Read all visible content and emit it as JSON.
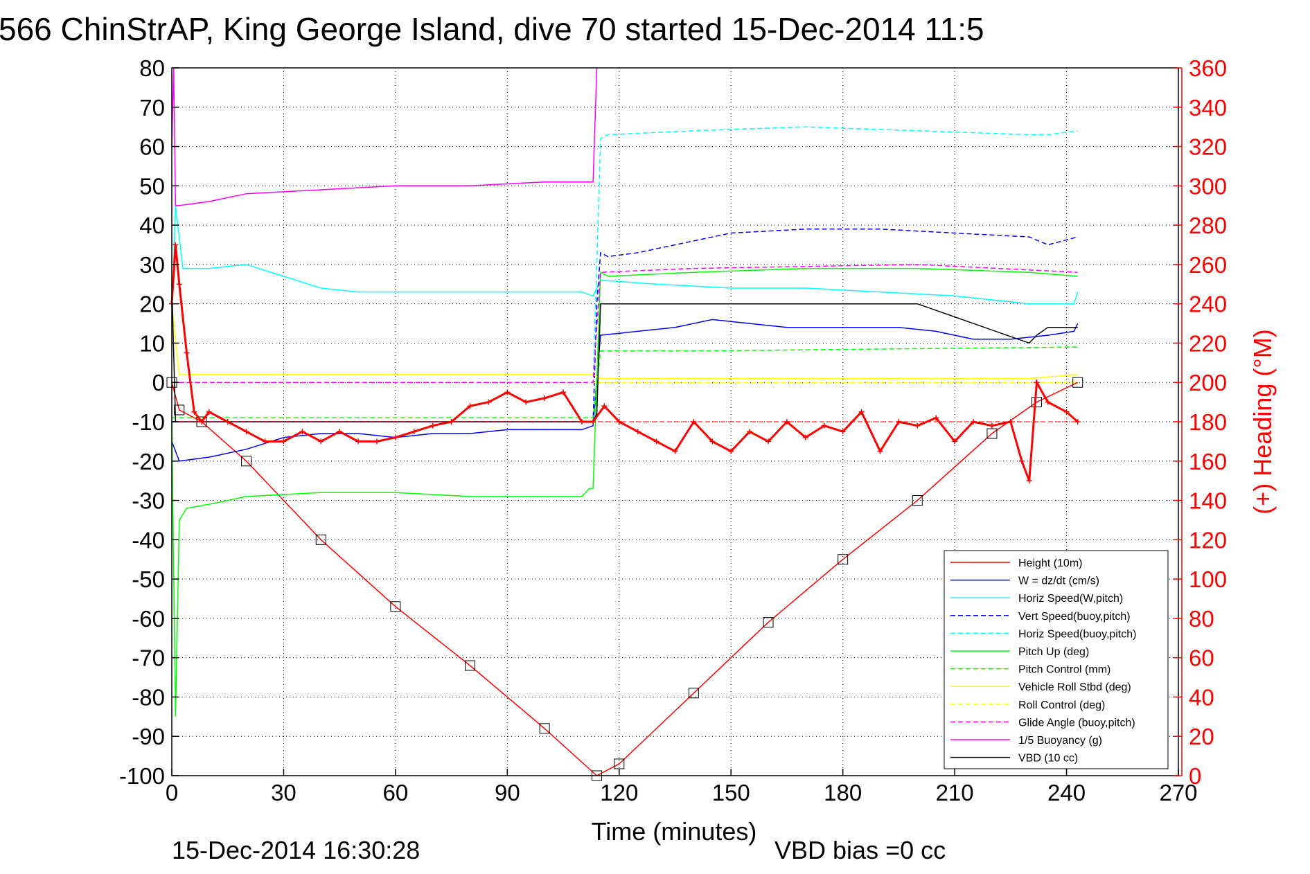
{
  "chart_data": {
    "type": "line",
    "title": "566 ChinStrAP, King George Island, dive 70 started 15-Dec-2014 11:5",
    "xlabel": "Time (minutes)",
    "ylabel_right": "(+) Heading (°M)",
    "xlim": [
      0,
      270
    ],
    "ylim": [
      -100,
      80
    ],
    "ylim_right": [
      0,
      360
    ],
    "xticks": [
      "0",
      "30",
      "60",
      "90",
      "120",
      "150",
      "180",
      "210",
      "240",
      "270"
    ],
    "yticks": [
      "80",
      "70",
      "60",
      "50",
      "40",
      "30",
      "20",
      "10",
      "0",
      "-10",
      "-20",
      "-30",
      "-40",
      "-50",
      "-60",
      "-70",
      "-80",
      "-90",
      "-100"
    ],
    "yticks_right": [
      "360",
      "340",
      "320",
      "300",
      "280",
      "260",
      "240",
      "220",
      "200",
      "180",
      "160",
      "140",
      "120",
      "100",
      "80",
      "60",
      "40",
      "20",
      "0"
    ],
    "grid": true,
    "legend_position": "bottom-right",
    "footer_left": "15-Dec-2014 16:30:28",
    "footer_right": "VBD bias =0 cc",
    "series": [
      {
        "name": "Height (10m)",
        "color": "#ff0000",
        "style": "solid",
        "x": [
          0,
          2,
          8,
          20,
          40,
          60,
          80,
          100,
          114,
          120,
          140,
          160,
          180,
          200,
          220,
          232,
          243
        ],
        "values": [
          0,
          -7,
          -10,
          -20,
          -40,
          -57,
          -72,
          -88,
          -100,
          -97,
          -79,
          -61,
          -45,
          -30,
          -13,
          -5,
          0
        ]
      },
      {
        "name": "W = dz/dt (cm/s)",
        "color": "#0000ff",
        "style": "solid",
        "x": [
          0,
          2,
          10,
          20,
          30,
          40,
          50,
          60,
          70,
          80,
          90,
          100,
          110,
          113,
          115,
          125,
          135,
          145,
          155,
          165,
          175,
          185,
          195,
          205,
          215,
          225,
          235,
          242,
          243
        ],
        "values": [
          -15,
          -20,
          -19,
          -17,
          -14,
          -13,
          -13,
          -14,
          -13,
          -13,
          -12,
          -12,
          -12,
          -11,
          12,
          13,
          14,
          16,
          15,
          14,
          14,
          14,
          14,
          13,
          11,
          11,
          12,
          13,
          15
        ]
      },
      {
        "name": "Horiz Speed(W,pitch)",
        "color": "#00ffff",
        "style": "solid",
        "x": [
          0,
          1,
          3,
          10,
          20,
          30,
          40,
          50,
          60,
          70,
          80,
          90,
          100,
          110,
          113,
          115,
          130,
          150,
          170,
          190,
          210,
          230,
          242,
          243
        ],
        "values": [
          15,
          45,
          29,
          29,
          30,
          27,
          24,
          23,
          23,
          23,
          23,
          23,
          23,
          23,
          22,
          26,
          25,
          24,
          24,
          23,
          22,
          20,
          20,
          23
        ]
      },
      {
        "name": "Vert Speed(buoy,pitch)",
        "color": "#0000ff",
        "style": "dashed",
        "x": [
          0,
          113,
          114,
          115,
          117,
          125,
          130,
          150,
          170,
          190,
          210,
          230,
          235,
          243
        ],
        "values": [
          -10,
          -10,
          20,
          33,
          32,
          33,
          34,
          38,
          39,
          39,
          38,
          37,
          35,
          37
        ]
      },
      {
        "name": "Horiz Speed(buoy,pitch)",
        "color": "#00ffff",
        "style": "dashed",
        "x": [
          0,
          113,
          114,
          115,
          117,
          140,
          170,
          200,
          230,
          235,
          243
        ],
        "values": [
          0,
          0,
          30,
          62,
          63,
          64,
          65,
          64,
          63,
          63,
          64
        ]
      },
      {
        "name": "Pitch Up (deg)",
        "color": "#00ff00",
        "style": "solid",
        "x": [
          0,
          1,
          2,
          4,
          10,
          20,
          40,
          60,
          80,
          100,
          110,
          112,
          113,
          115,
          117,
          140,
          170,
          200,
          230,
          243
        ],
        "values": [
          -10,
          -85,
          -35,
          -32,
          -31,
          -29,
          -28,
          -28,
          -29,
          -29,
          -29,
          -27,
          -27,
          28,
          27,
          28,
          29,
          29,
          28,
          27
        ]
      },
      {
        "name": "Pitch Control (mm)",
        "color": "#00ff00",
        "style": "dashed",
        "x": [
          0,
          113,
          115,
          140,
          243
        ],
        "values": [
          -9,
          -9,
          8,
          8,
          9
        ]
      },
      {
        "name": "Vehicle Roll Stbd (deg)",
        "color": "#ffff00",
        "style": "solid",
        "x": [
          0,
          2,
          10,
          30,
          60,
          90,
          113,
          115,
          150,
          200,
          230,
          243
        ],
        "values": [
          20,
          2,
          2,
          2,
          2,
          2,
          2,
          1,
          1,
          1,
          1,
          2
        ]
      },
      {
        "name": "Roll Control (deg)",
        "color": "#ffff00",
        "style": "dashed",
        "x": [
          0,
          10,
          60,
          113,
          120,
          243
        ],
        "values": [
          0,
          0,
          0,
          0,
          0,
          0
        ]
      },
      {
        "name": "Glide Angle (buoy,pitch)",
        "color": "#ff00ff",
        "style": "dashed",
        "x": [
          0,
          113,
          115,
          140,
          200,
          243
        ],
        "values": [
          0,
          0,
          28,
          29,
          30,
          28
        ]
      },
      {
        "name": "1/5 Buoyancy (g)",
        "color": "#ff00ff",
        "style": "solid",
        "x": [
          0,
          0.5,
          1,
          2,
          10,
          20,
          40,
          60,
          80,
          100,
          112,
          113,
          114
        ],
        "values": [
          60,
          80,
          45,
          45,
          46,
          48,
          49,
          50,
          50,
          51,
          51,
          51,
          80
        ]
      },
      {
        "name": "VBD (10 cc)",
        "color": "#000000",
        "style": "solid",
        "x": [
          0,
          1,
          2,
          113,
          114,
          115,
          120,
          140,
          200,
          230,
          232,
          235,
          243
        ],
        "values": [
          25,
          -10,
          -10,
          -10,
          -8,
          20,
          20,
          20,
          20,
          10,
          12,
          14,
          14
        ]
      }
    ],
    "heading_series": {
      "name": "(+) Heading (°M)",
      "color": "#ff0000",
      "marker": "+",
      "x": [
        0,
        1,
        2,
        4,
        6,
        8,
        10,
        15,
        20,
        25,
        30,
        35,
        40,
        45,
        50,
        55,
        60,
        65,
        70,
        75,
        80,
        85,
        90,
        95,
        100,
        105,
        110,
        113,
        116,
        120,
        125,
        130,
        135,
        140,
        145,
        150,
        155,
        160,
        165,
        170,
        175,
        180,
        185,
        190,
        195,
        200,
        205,
        210,
        215,
        220,
        225,
        228,
        230,
        232,
        235,
        240,
        243
      ],
      "values": [
        240,
        270,
        250,
        215,
        185,
        180,
        185,
        180,
        175,
        170,
        170,
        175,
        170,
        175,
        170,
        170,
        172,
        175,
        178,
        180,
        188,
        190,
        195,
        190,
        192,
        195,
        180,
        180,
        188,
        180,
        175,
        170,
        165,
        180,
        170,
        165,
        175,
        170,
        180,
        172,
        178,
        175,
        185,
        165,
        180,
        178,
        182,
        170,
        180,
        178,
        180,
        160,
        150,
        200,
        190,
        185,
        180
      ]
    }
  }
}
